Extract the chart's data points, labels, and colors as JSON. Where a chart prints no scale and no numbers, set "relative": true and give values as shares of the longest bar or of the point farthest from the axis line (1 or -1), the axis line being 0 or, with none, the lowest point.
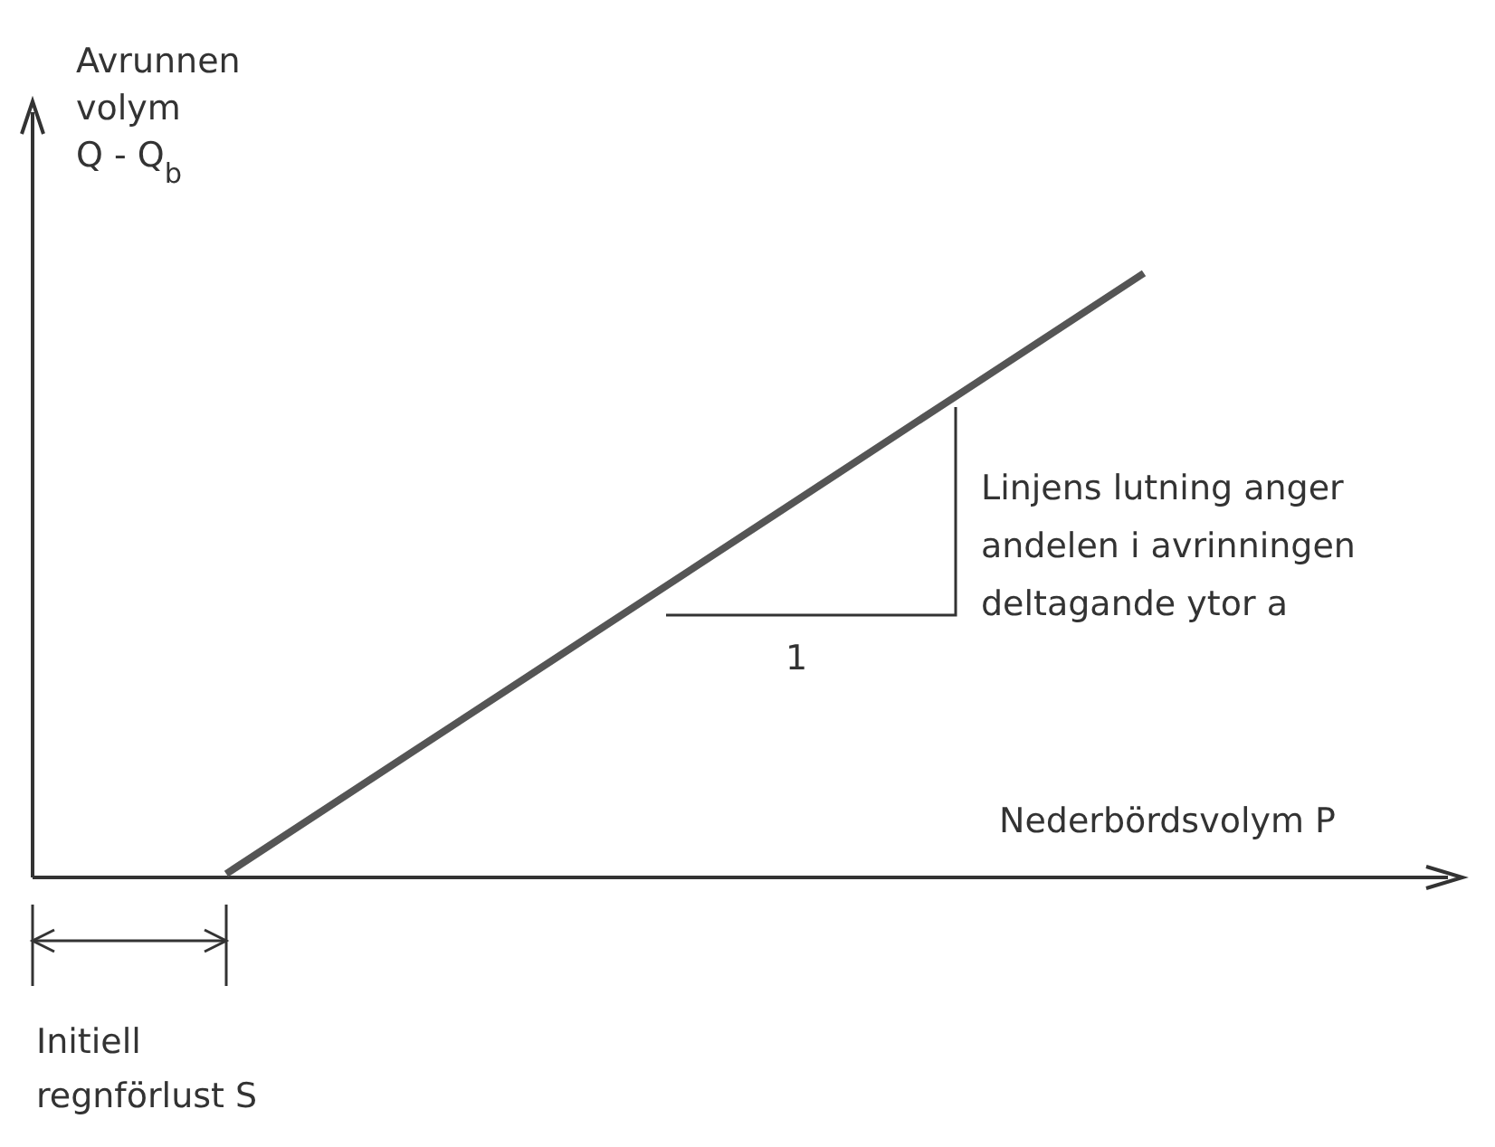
{
  "chart_data": {
    "type": "line",
    "relative": true,
    "ylabel": "Avrunnen\nvolym\nQ - Q$_{b}$",
    "xlabel": "Nederbördsvolym P",
    "categories": [
      null,
      null,
      null,
      null,
      null,
      null
    ],
    "series": [
      {
        "color": "#555555",
        "values": [
          0,
          0.2,
          0.4,
          0.6,
          0.8,
          1
        ]
      }
    ],
    "annotations": [
      "Linjens lutning anger\nandelen i avrinningen\ndeltagande ytor a",
      "1",
      "Initiell\nregnförlust S"
    ],
    "grid": false,
    "marker": "none",
    "line_style": "solid"
  }
}
